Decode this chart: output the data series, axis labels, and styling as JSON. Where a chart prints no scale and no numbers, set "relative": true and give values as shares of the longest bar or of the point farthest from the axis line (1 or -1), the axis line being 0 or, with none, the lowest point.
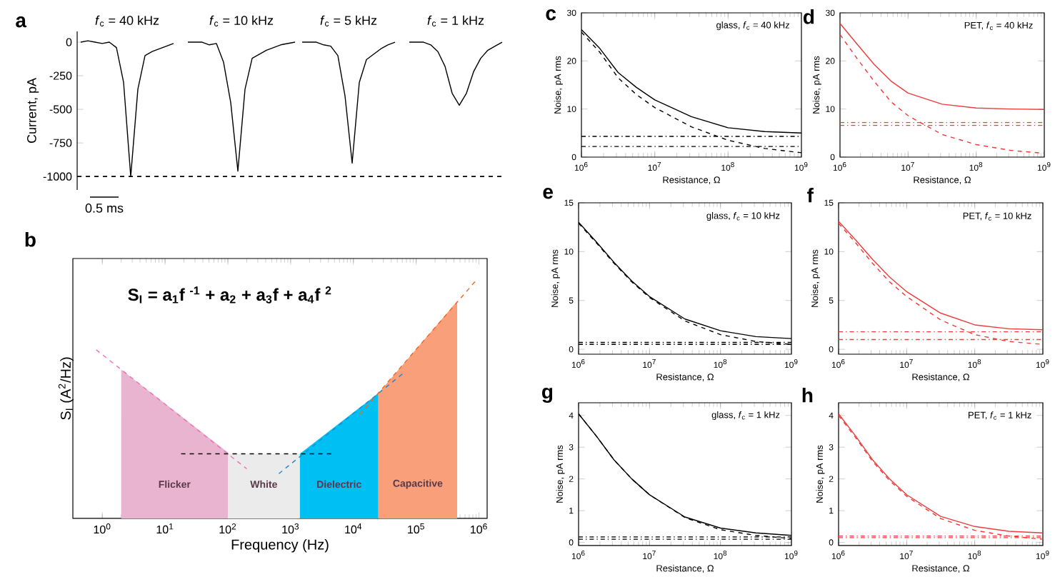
{
  "chart_data": [
    {
      "type": "line",
      "title": "a",
      "ylabel": "Current, pA",
      "categories": [
        null,
        null,
        null,
        null,
        null,
        null,
        null,
        null,
        null,
        null,
        null,
        null,
        null,
        null,
        null,
        null,
        null,
        null,
        null,
        null,
        null,
        null,
        null,
        null,
        null,
        null,
        null,
        null,
        null,
        null,
        null,
        null,
        null,
        null,
        null,
        null,
        null,
        null,
        null,
        null,
        null,
        null,
        null,
        null,
        null,
        null,
        null,
        null,
        null,
        null,
        null,
        null,
        null,
        null,
        null,
        null,
        null,
        null,
        null,
        null
      ],
      "ylim": [
        -1100,
        80
      ],
      "yticks": [
        0,
        -250,
        -500,
        -750,
        -1000
      ],
      "tick_labels": "y",
      "annotations": [
        "*f*$_{c}$ = 40 kHz",
        "*f*$_{c}$ = 10 kHz",
        "*f*$_{c}$ = 5 kHz",
        "*f*$_{c}$ = 1 kHz",
        "0.5 ms"
      ],
      "ref_lines": [
        {
          "axis": "y",
          "value": -1000,
          "line_style": "dashed",
          "color": "#000000"
        }
      ],
      "series": [
        {
          "color": "#000000",
          "values": [
            0,
            10,
            0,
            -10,
            0,
            -40,
            -300,
            -1000,
            -350,
            -100,
            -70,
            -50,
            -30,
            -10,
            null,
            null,
            null,
            null,
            null,
            null,
            null,
            null,
            null,
            null,
            null,
            null,
            null,
            null,
            null,
            null,
            null,
            null,
            null,
            null,
            null,
            null,
            null,
            null,
            null,
            null,
            null,
            null,
            null,
            null,
            null,
            null,
            null,
            null,
            null,
            null,
            null,
            null,
            null,
            null,
            null,
            null,
            null,
            null,
            null,
            null
          ]
        },
        {
          "color": "#000000",
          "values": [
            null,
            null,
            null,
            null,
            null,
            null,
            null,
            null,
            null,
            null,
            null,
            null,
            null,
            null,
            null,
            0,
            0,
            0,
            -20,
            -10,
            -150,
            -450,
            -960,
            -350,
            -120,
            -90,
            -60,
            -40,
            -20,
            -10,
            0,
            null,
            null,
            null,
            null,
            null,
            null,
            null,
            null,
            null,
            null,
            null,
            null,
            null,
            null,
            null,
            null,
            null,
            null,
            null,
            null,
            null,
            null,
            null,
            null,
            null,
            null,
            null,
            null,
            null
          ]
        },
        {
          "color": "#000000",
          "values": [
            null,
            null,
            null,
            null,
            null,
            null,
            null,
            null,
            null,
            null,
            null,
            null,
            null,
            null,
            null,
            null,
            null,
            null,
            null,
            null,
            null,
            null,
            null,
            null,
            null,
            null,
            null,
            null,
            null,
            null,
            null,
            0,
            0,
            0,
            -20,
            -30,
            -100,
            -400,
            -900,
            -300,
            -130,
            -90,
            -50,
            -20,
            0,
            null,
            null,
            null,
            null,
            null,
            null,
            null,
            null,
            null,
            null,
            null,
            null,
            null,
            null,
            null
          ]
        },
        {
          "color": "#000000",
          "values": [
            null,
            null,
            null,
            null,
            null,
            null,
            null,
            null,
            null,
            null,
            null,
            null,
            null,
            null,
            null,
            null,
            null,
            null,
            null,
            null,
            null,
            null,
            null,
            null,
            null,
            null,
            null,
            null,
            null,
            null,
            null,
            null,
            null,
            null,
            null,
            null,
            null,
            null,
            null,
            null,
            null,
            null,
            null,
            null,
            null,
            null,
            0,
            0,
            0,
            -20,
            -70,
            -180,
            -380,
            -470,
            -380,
            -220,
            -120,
            -60,
            -30,
            0
          ]
        }
      ]
    },
    {
      "type": "area",
      "title": "b",
      "xlabel": "Frequency (Hz)",
      "ylabel": "S$_{I}$ (A$^{2}$/Hz)",
      "relative": true,
      "log": "x",
      "tick_labels": "x",
      "xlim": [
        0.34,
        1350000
      ],
      "xticks": [
        {
          "value": 1,
          "label": "10$^{0}$"
        },
        {
          "value": 10,
          "label": "10$^{1}$"
        },
        {
          "value": 100,
          "label": "10$^{2}$"
        },
        {
          "value": 1000,
          "label": "10$^{3}$"
        },
        {
          "value": 10000,
          "label": "10$^{4}$"
        },
        {
          "value": 100000,
          "label": "10$^{5}$"
        },
        {
          "value": 1000000,
          "label": "10$^{6}$"
        }
      ],
      "annotations": [
        "S$_{I}$ = a$_{1}$f $^{-1}$ + a$_{2}$ + a$_{3}$f + a$_{4}$f $^{2}$",
        "Flicker",
        "White",
        "Dielectric",
        "Capacitive"
      ],
      "series": [
        {
          "type": "area",
          "color": "#e8b4d0",
          "x": [
            2,
            100
          ],
          "values": [
            0.624,
            0.277
          ]
        },
        {
          "type": "area",
          "color": "#ebebeb",
          "x": [
            100,
            1400
          ],
          "values": [
            0.271,
            0.271
          ]
        },
        {
          "type": "area",
          "color": "#00bff3",
          "x": [
            1400,
            25000
          ],
          "values": [
            0.271,
            0.525
          ]
        },
        {
          "type": "area",
          "color": "#f9a07a",
          "x": [
            25000,
            450000
          ],
          "values": [
            0.525,
            0.911
          ]
        },
        {
          "type": "line",
          "line_style": "dashed",
          "color": "#f070b0",
          "x": [
            0.8,
            200
          ],
          "values": [
            0.707,
            0.208
          ]
        },
        {
          "type": "line",
          "line_style": "dashed",
          "color": "#000000",
          "x": [
            18,
            4570
          ],
          "values": [
            0.271,
            0.271
          ]
        },
        {
          "type": "line",
          "line_style": "dashed",
          "color": "#1e88d0",
          "x": [
            650,
            66000
          ],
          "values": [
            0.188,
            0.614
          ]
        },
        {
          "type": "line",
          "line_style": "dashed",
          "color": "#f26522",
          "x": [
            12600,
            912000
          ],
          "values": [
            0.436,
            1
          ]
        }
      ]
    },
    {
      "type": "line",
      "title": "c",
      "xlabel": "Resistance, Ω",
      "ylabel": "Noise, pA rms",
      "log": "x",
      "xlim": [
        1000000,
        1000000000
      ],
      "xticks": [
        {
          "value": 1000000,
          "label": "10$^{6}$"
        },
        {
          "value": 10000000,
          "label": "10$^{7}$"
        },
        {
          "value": 100000000,
          "label": "10$^{8}$"
        },
        {
          "value": 1000000000,
          "label": "10$^{9}$"
        }
      ],
      "ylim": [
        0,
        30
      ],
      "yticks": [
        0,
        10,
        20,
        30
      ],
      "annotations": [
        "glass, *f*$_{c}$ = 40 kHz"
      ],
      "x": [
        1000000,
        1780000,
        3160000,
        5620000,
        10000000,
        31600000,
        100000000,
        316000000,
        1000000000
      ],
      "series": [
        {
          "color": "#000000",
          "line_style": "solid",
          "values": [
            26.5,
            22.6,
            17.6,
            14.5,
            11.9,
            8.4,
            6.1,
            5.3,
            5.0
          ]
        },
        {
          "color": "#000000",
          "line_style": "dashed",
          "values": [
            26.0,
            21.8,
            16.5,
            13.0,
            10.3,
            6.3,
            3.5,
            1.8,
            0.9
          ]
        },
        {
          "color": "#000000",
          "line_style": "dotted",
          "x": [
            1000000,
            1000000000
          ],
          "values": [
            4.3,
            4.3
          ]
        },
        {
          "color": "#000000",
          "line_style": "dotted",
          "x": [
            1000000,
            1000000000
          ],
          "values": [
            2.2,
            2.2
          ]
        }
      ]
    },
    {
      "type": "line",
      "title": "d",
      "xlabel": "Resistance, Ω",
      "ylabel": "Noise, pA rms",
      "log": "x",
      "xlim": [
        1000000,
        1000000000
      ],
      "xticks": [
        {
          "value": 1000000,
          "label": "10$^{6}$"
        },
        {
          "value": 10000000,
          "label": "10$^{7}$"
        },
        {
          "value": 100000000,
          "label": "10$^{8}$"
        },
        {
          "value": 1000000000,
          "label": "10$^{9}$"
        }
      ],
      "ylim": [
        0,
        30
      ],
      "yticks": [
        0,
        10,
        20,
        30
      ],
      "annotations": [
        "PET, *f*$_{c}$ = 40 kHz"
      ],
      "x": [
        1000000,
        1780000,
        3160000,
        5620000,
        10000000,
        31600000,
        100000000,
        316000000,
        1000000000
      ],
      "series": [
        {
          "color": "#ee3b3b",
          "line_style": "solid",
          "values": [
            27.8,
            23.5,
            19.3,
            15.8,
            13.3,
            11.0,
            10.2,
            10.0,
            9.9
          ]
        },
        {
          "color": "#ee3b3b",
          "line_style": "dashed",
          "values": [
            25.5,
            20.5,
            15.8,
            11.5,
            8.6,
            4.7,
            2.6,
            1.4,
            0.8
          ]
        },
        {
          "color": "#ee3b3b",
          "line_style": "dotted",
          "x": [
            1000000,
            1000000000
          ],
          "values": [
            7.2,
            7.2
          ]
        },
        {
          "color": "#ee3b3b",
          "line_style": "dotted",
          "x": [
            1000000,
            1000000000
          ],
          "values": [
            6.6,
            6.6
          ]
        }
      ]
    },
    {
      "type": "line",
      "title": "e",
      "xlabel": "Resistance, Ω",
      "ylabel": "Noise, pA rms",
      "log": "x",
      "xlim": [
        1000000,
        1000000000
      ],
      "xticks": [
        {
          "value": 1000000,
          "label": "10$^{6}$"
        },
        {
          "value": 10000000,
          "label": "10$^{7}$"
        },
        {
          "value": 100000000,
          "label": "10$^{8}$"
        },
        {
          "value": 1000000000,
          "label": "10$^{9}$"
        }
      ],
      "ylim": [
        -0.5,
        15
      ],
      "yticks": [
        0,
        5,
        10,
        15
      ],
      "annotations": [
        "glass, *f*$_{c}$ = 10 kHz"
      ],
      "x": [
        1000000,
        1780000,
        3160000,
        5620000,
        10000000,
        31600000,
        100000000,
        316000000,
        1000000000
      ],
      "series": [
        {
          "color": "#000000",
          "line_style": "solid",
          "values": [
            13.0,
            11.0,
            8.9,
            7.0,
            5.4,
            3.1,
            1.9,
            1.3,
            1.1
          ]
        },
        {
          "color": "#000000",
          "line_style": "dashed",
          "values": [
            12.9,
            10.9,
            8.8,
            6.9,
            5.3,
            2.9,
            1.5,
            0.8,
            0.5
          ]
        },
        {
          "color": "#000000",
          "line_style": "dotted",
          "x": [
            1000000,
            1000000000
          ],
          "values": [
            0.7,
            0.7
          ]
        },
        {
          "color": "#000000",
          "line_style": "dotted",
          "x": [
            1000000,
            1000000000
          ],
          "values": [
            0.5,
            0.5
          ]
        }
      ]
    },
    {
      "type": "line",
      "title": "f",
      "xlabel": "Resistance, Ω",
      "ylabel": "Noise, pA rms",
      "log": "x",
      "xlim": [
        1000000,
        1000000000
      ],
      "xticks": [
        {
          "value": 1000000,
          "label": "10$^{6}$"
        },
        {
          "value": 10000000,
          "label": "10$^{7}$"
        },
        {
          "value": 100000000,
          "label": "10$^{8}$"
        },
        {
          "value": 1000000000,
          "label": "10$^{9}$"
        }
      ],
      "ylim": [
        -0.5,
        15
      ],
      "yticks": [
        0,
        5,
        10,
        15
      ],
      "annotations": [
        "PET, *f*$_{c}$ = 10 kHz"
      ],
      "x": [
        1000000,
        1780000,
        3160000,
        5620000,
        10000000,
        31600000,
        100000000,
        316000000,
        1000000000
      ],
      "series": [
        {
          "color": "#ee3b3b",
          "line_style": "solid",
          "values": [
            13.1,
            11.2,
            9.2,
            7.4,
            5.9,
            3.7,
            2.5,
            2.1,
            2.0
          ]
        },
        {
          "color": "#ee3b3b",
          "line_style": "dashed",
          "values": [
            12.9,
            10.9,
            8.8,
            6.9,
            5.4,
            3.0,
            1.5,
            0.8,
            0.5
          ]
        },
        {
          "color": "#ee3b3b",
          "line_style": "dotted",
          "x": [
            1000000,
            1000000000
          ],
          "values": [
            1.8,
            1.8
          ]
        },
        {
          "color": "#ee3b3b",
          "line_style": "dotted",
          "x": [
            1000000,
            1000000000
          ],
          "values": [
            1.0,
            1.0
          ]
        }
      ]
    },
    {
      "type": "line",
      "title": "g",
      "xlabel": "Resistance, Ω",
      "ylabel": "Noise, pA rms",
      "log": "x",
      "xlim": [
        1000000,
        1000000000
      ],
      "xticks": [
        {
          "value": 1000000,
          "label": "10$^{6}$"
        },
        {
          "value": 10000000,
          "label": "10$^{7}$"
        },
        {
          "value": 100000000,
          "label": "10$^{8}$"
        },
        {
          "value": 1000000000,
          "label": "10$^{9}$"
        }
      ],
      "ylim": [
        -0.1,
        4.4
      ],
      "yticks": [
        0,
        1,
        2,
        3,
        4
      ],
      "annotations": [
        "glass, *f*$_{c}$ = 1 kHz"
      ],
      "x": [
        1000000,
        1780000,
        3160000,
        5620000,
        10000000,
        31600000,
        100000000,
        316000000,
        1000000000
      ],
      "series": [
        {
          "color": "#000000",
          "line_style": "solid",
          "values": [
            4.05,
            3.35,
            2.6,
            2.0,
            1.5,
            0.8,
            0.45,
            0.3,
            0.22
          ]
        },
        {
          "color": "#000000",
          "line_style": "dashed",
          "values": [
            4.05,
            3.35,
            2.6,
            2.0,
            1.5,
            0.78,
            0.4,
            0.22,
            0.12
          ]
        },
        {
          "color": "#000000",
          "line_style": "dotted",
          "x": [
            1000000,
            1000000000
          ],
          "values": [
            0.17,
            0.17
          ]
        },
        {
          "color": "#000000",
          "line_style": "dotted",
          "x": [
            1000000,
            1000000000
          ],
          "values": [
            0.1,
            0.1
          ]
        }
      ]
    },
    {
      "type": "line",
      "title": "h",
      "xlabel": "Resistance, Ω",
      "ylabel": "Noise, pA rms",
      "log": "x",
      "xlim": [
        1000000,
        1000000000
      ],
      "xticks": [
        {
          "value": 1000000,
          "label": "10$^{6}$"
        },
        {
          "value": 10000000,
          "label": "10$^{7}$"
        },
        {
          "value": 100000000,
          "label": "10$^{8}$"
        },
        {
          "value": 1000000000,
          "label": "10$^{9}$"
        }
      ],
      "ylim": [
        -0.1,
        4.4
      ],
      "yticks": [
        0,
        1,
        2,
        3,
        4
      ],
      "annotations": [
        "PET, *f*$_{c}$ = 1 kHz"
      ],
      "x": [
        1000000,
        1780000,
        3160000,
        5620000,
        10000000,
        31600000,
        100000000,
        316000000,
        1000000000
      ],
      "series": [
        {
          "color": "#ee3b3b",
          "line_style": "solid",
          "values": [
            4.05,
            3.35,
            2.6,
            2.0,
            1.5,
            0.82,
            0.5,
            0.35,
            0.3
          ]
        },
        {
          "color": "#ee3b3b",
          "line_style": "dashed",
          "values": [
            4.0,
            3.3,
            2.55,
            1.95,
            1.45,
            0.75,
            0.38,
            0.2,
            0.1
          ]
        },
        {
          "color": "#ee3b3b",
          "line_style": "dotted",
          "x": [
            1000000,
            1000000000
          ],
          "values": [
            0.2,
            0.2
          ]
        },
        {
          "color": "#ee3b3b",
          "line_style": "dotted",
          "x": [
            1000000,
            1000000000
          ],
          "values": [
            0.15,
            0.15
          ]
        }
      ]
    }
  ]
}
